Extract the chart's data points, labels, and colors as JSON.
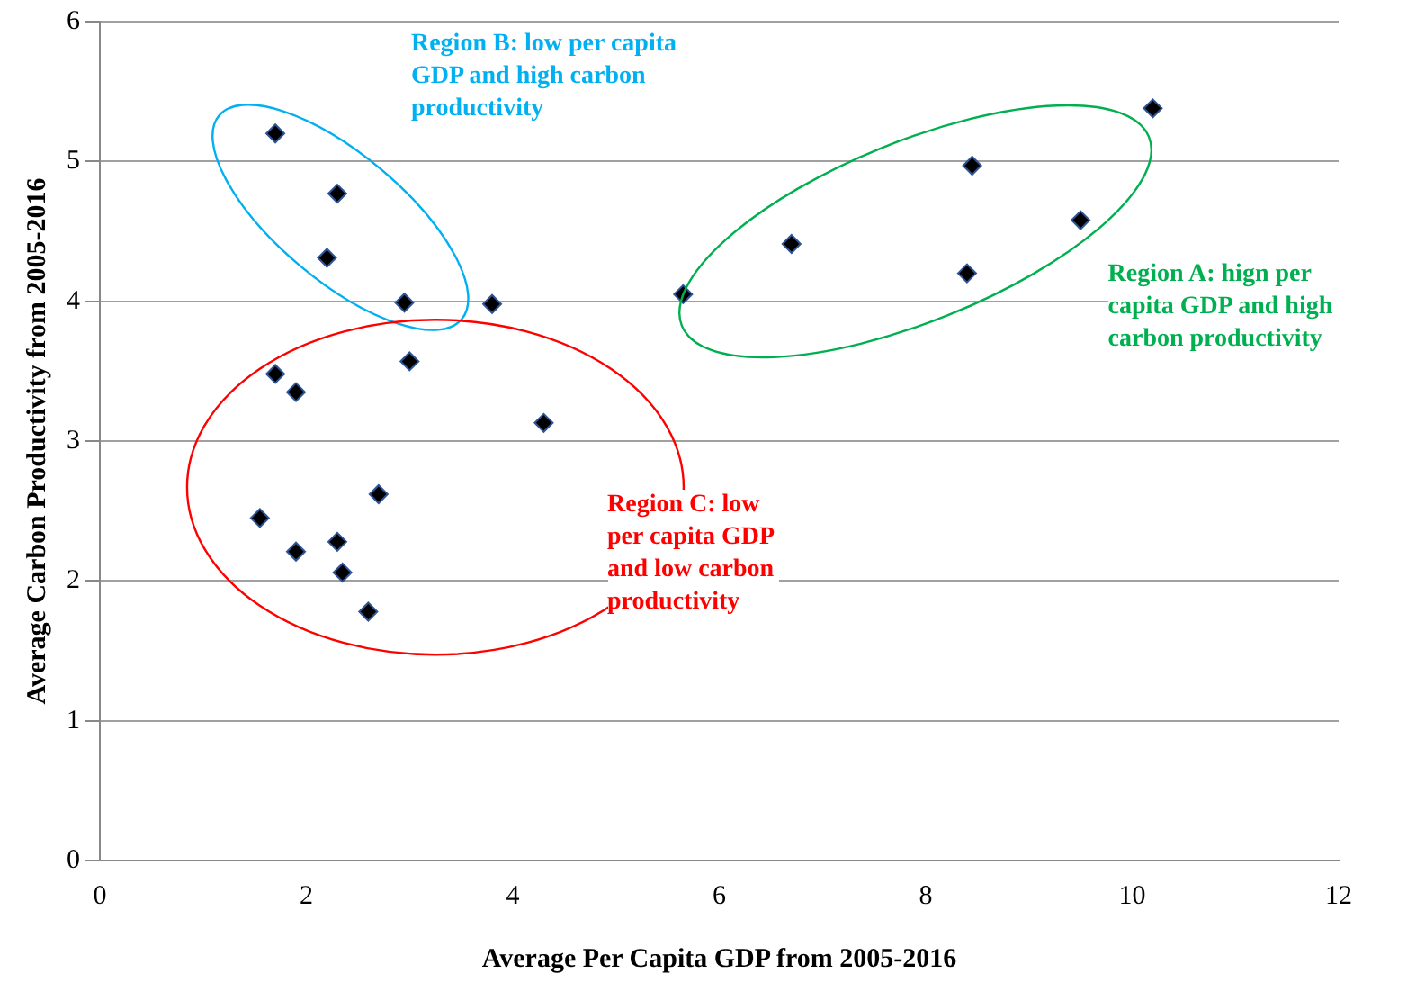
{
  "chart_data": {
    "type": "scatter",
    "xlabel": "Average Per Capita GDP from 2005-2016",
    "ylabel": "Average Carbon Productivity from 2005-2016",
    "xlim": [
      0,
      12
    ],
    "xticks": [
      0,
      2,
      4,
      6,
      8,
      10,
      12
    ],
    "ylim": [
      0,
      6
    ],
    "yticks": [
      0,
      1,
      2,
      3,
      4,
      5,
      6
    ],
    "grid": "y",
    "legend": false,
    "marker": "diamond",
    "annotations": [
      "Region A: hign per capita GDP and high carbon productivity",
      "Region B: low per capita GDP and high carbon productivity",
      "Region C: low per capita GDP and low carbon productivity"
    ],
    "series": [
      {
        "color": "#000000",
        "x": [
          1.7,
          2.3,
          2.2,
          2.95,
          3.8,
          1.7,
          1.9,
          3.0,
          4.3,
          2.7,
          1.55,
          1.9,
          2.3,
          2.35,
          2.6,
          5.65,
          6.7,
          8.45,
          8.4,
          9.5,
          10.2
        ],
        "values": [
          5.2,
          4.77,
          4.31,
          3.99,
          3.98,
          3.48,
          3.35,
          3.57,
          3.13,
          2.62,
          2.45,
          2.21,
          2.28,
          2.06,
          1.78,
          4.05,
          4.41,
          4.97,
          4.2,
          4.58,
          5.38
        ]
      }
    ]
  }
}
